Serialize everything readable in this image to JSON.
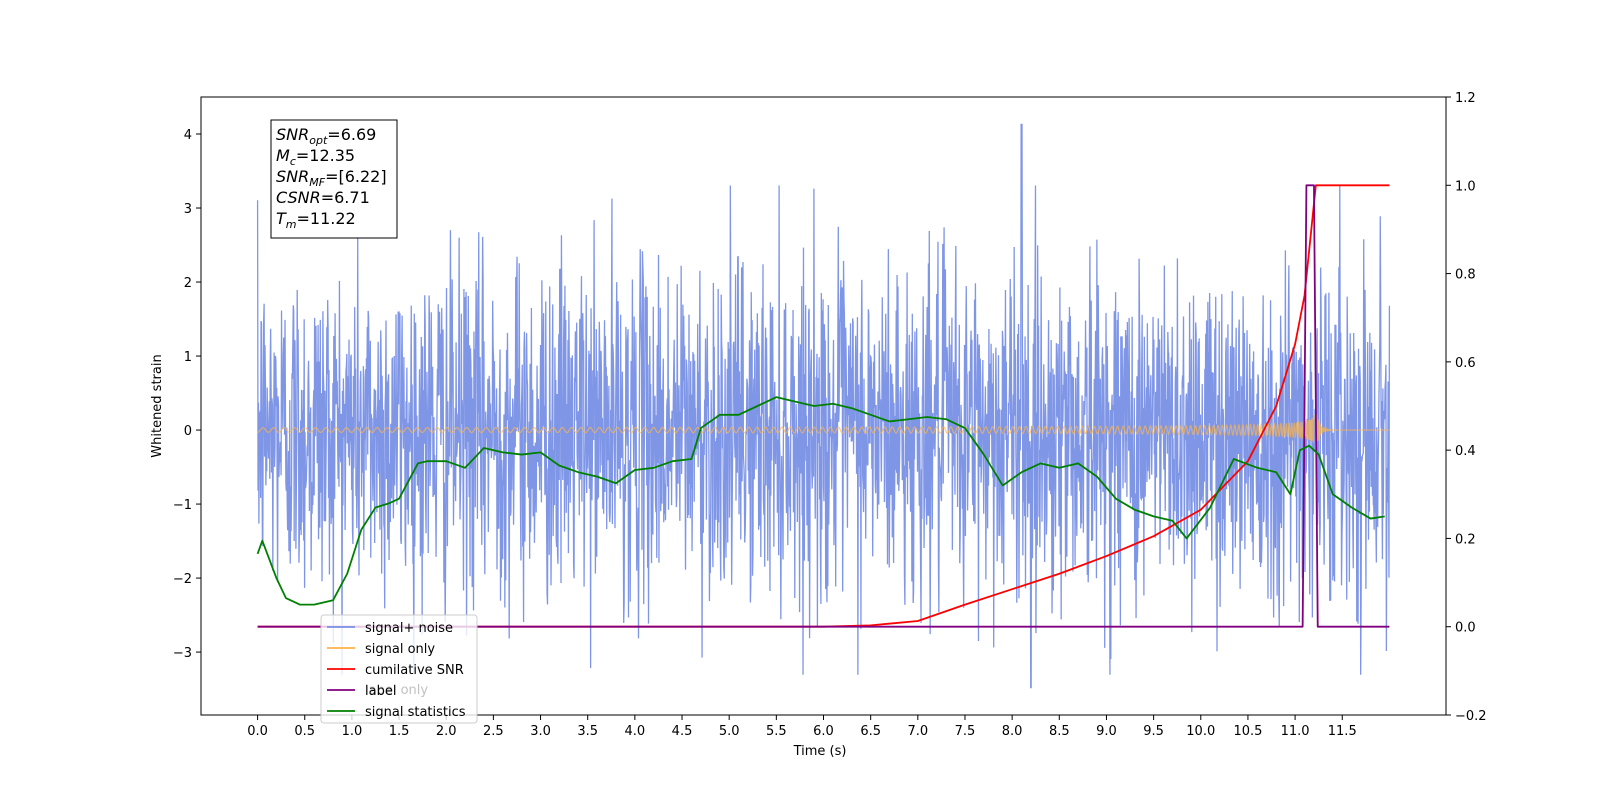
{
  "chart_data": {
    "type": "line",
    "title": "",
    "xlabel": "Time (s)",
    "ylabel": "Whitened strain",
    "xlim": [
      -0.6,
      12.6
    ],
    "ylim": [
      -3.85,
      4.5
    ],
    "y2lim": [
      -0.2,
      1.2
    ],
    "xticks": [
      "0.0",
      "0.5",
      "1.0",
      "1.5",
      "2.0",
      "2.5",
      "3.0",
      "3.5",
      "4.0",
      "4.5",
      "5.0",
      "5.5",
      "6.0",
      "6.5",
      "7.0",
      "7.5",
      "8.0",
      "8.5",
      "9.0",
      "9.5",
      "10.0",
      "10.5",
      "11.0",
      "11.5"
    ],
    "yticks": [
      "4",
      "3",
      "2",
      "1",
      "0",
      "−1",
      "−2",
      "−3"
    ],
    "y2ticks": [
      "1.2",
      "1.0",
      "0.8",
      "0.6",
      "0.4",
      "0.2",
      "0.0",
      "−0.2"
    ],
    "grid": false,
    "legend_placement": "lower-left",
    "series": [
      {
        "name": "signal+ noise",
        "color": "#7890e6",
        "axis": "left",
        "kind": "noise",
        "t_range": [
          0.0,
          12.0
        ],
        "typical_range": [
          -2.4,
          2.3
        ],
        "peak_max": 4.13,
        "peak_max_at": 8.1,
        "peak_min": -3.48,
        "peak_min_at": 8.2
      },
      {
        "name": "signal only",
        "color": "#ffb347",
        "axis": "left",
        "kind": "chirp",
        "t_range": [
          0.0,
          12.0
        ],
        "merger_time": 11.22,
        "peak_amplitude": 0.35
      },
      {
        "name": "cumilative SNR",
        "color": "#ff0000",
        "axis": "right",
        "x": [
          0.0,
          6.0,
          6.5,
          7.0,
          7.5,
          8.0,
          8.5,
          9.0,
          9.5,
          10.0,
          10.5,
          10.8,
          11.0,
          11.1,
          11.22,
          12.0
        ],
        "y": [
          0.0,
          0.0,
          0.003,
          0.013,
          0.05,
          0.085,
          0.12,
          0.16,
          0.205,
          0.265,
          0.375,
          0.5,
          0.64,
          0.75,
          1.0,
          1.0
        ]
      },
      {
        "name": "label",
        "color": "#800080",
        "axis": "right",
        "x": [
          0.0,
          11.08,
          11.12,
          11.2,
          11.24,
          12.0
        ],
        "y": [
          0.0,
          0.0,
          1.0,
          1.0,
          0.0,
          0.0
        ]
      },
      {
        "name": "signal statistics",
        "color": "#008000",
        "axis": "right",
        "x": [
          0.0,
          0.05,
          0.2,
          0.3,
          0.45,
          0.6,
          0.8,
          0.95,
          1.1,
          1.25,
          1.4,
          1.5,
          1.7,
          1.8,
          2.0,
          2.2,
          2.4,
          2.6,
          2.8,
          3.0,
          3.2,
          3.4,
          3.6,
          3.8,
          4.0,
          4.2,
          4.4,
          4.6,
          4.7,
          4.9,
          5.1,
          5.3,
          5.5,
          5.7,
          5.9,
          6.1,
          6.3,
          6.5,
          6.7,
          6.9,
          7.1,
          7.3,
          7.5,
          7.7,
          7.9,
          8.1,
          8.3,
          8.5,
          8.7,
          8.9,
          9.1,
          9.3,
          9.5,
          9.7,
          9.85,
          10.1,
          10.35,
          10.6,
          10.8,
          10.95,
          11.05,
          11.15,
          11.25,
          11.4,
          11.6,
          11.8,
          11.95
        ],
        "y": [
          0.165,
          0.195,
          0.11,
          0.065,
          0.05,
          0.05,
          0.06,
          0.12,
          0.22,
          0.27,
          0.28,
          0.29,
          0.37,
          0.375,
          0.375,
          0.36,
          0.405,
          0.395,
          0.39,
          0.395,
          0.365,
          0.35,
          0.34,
          0.325,
          0.355,
          0.36,
          0.375,
          0.38,
          0.45,
          0.48,
          0.48,
          0.5,
          0.52,
          0.51,
          0.5,
          0.505,
          0.495,
          0.48,
          0.465,
          0.47,
          0.475,
          0.47,
          0.45,
          0.39,
          0.32,
          0.35,
          0.37,
          0.36,
          0.37,
          0.34,
          0.29,
          0.265,
          0.25,
          0.24,
          0.2,
          0.27,
          0.38,
          0.36,
          0.35,
          0.3,
          0.4,
          0.41,
          0.39,
          0.3,
          0.27,
          0.245,
          0.25
        ]
      }
    ],
    "legend_entries": [
      "signal+ noise",
      "signal only",
      "cumilative SNR",
      "label",
      "signal statistics"
    ],
    "legend_occluded_text": "label only",
    "annotation": {
      "lines": [
        {
          "main": "SNR",
          "sub": "opt",
          "value": "=6.69"
        },
        {
          "main": "M",
          "sub": "c",
          "value": "=12.35"
        },
        {
          "main": "SNR",
          "sub": "MF",
          "value": "=[6.22]"
        },
        {
          "main": "CSNR",
          "sub": "",
          "value": "=6.71"
        },
        {
          "main": "T",
          "sub": "m",
          "value": "=11.22"
        }
      ]
    }
  }
}
